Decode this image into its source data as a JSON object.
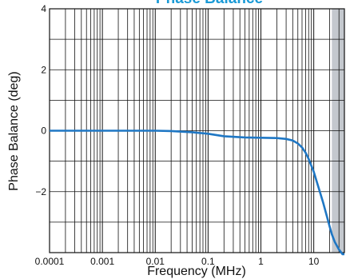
{
  "chart_data": {
    "type": "line",
    "title": "Phase Balance",
    "xlabel": "Frequency (MHz)",
    "ylabel": "Phase Balance (deg)",
    "x_scale": "log",
    "xlim": [
      0.0001,
      38
    ],
    "ylim": [
      -4,
      4
    ],
    "grid": true,
    "x_ticks": [
      {
        "value": 0.0001,
        "label": "0.0001"
      },
      {
        "value": 0.001,
        "label": "0.001"
      },
      {
        "value": 0.01,
        "label": "0.01"
      },
      {
        "value": 0.1,
        "label": "0.1"
      },
      {
        "value": 1,
        "label": "1"
      },
      {
        "value": 10,
        "label": "10"
      }
    ],
    "y_ticks": [
      {
        "value": 4,
        "label": "4"
      },
      {
        "value": 2,
        "label": "2"
      },
      {
        "value": 0,
        "label": "0"
      },
      {
        "value": -2,
        "label": "−2"
      }
    ],
    "shaded_region": {
      "x_from": 22,
      "x_to": 38
    },
    "series": [
      {
        "x": [
          0.0001,
          0.001,
          0.01,
          0.02,
          0.05,
          0.1,
          0.2,
          0.5,
          1,
          2,
          3,
          4,
          5,
          6,
          7,
          8,
          10,
          12,
          15,
          18,
          20,
          22,
          25,
          30,
          35,
          38
        ],
        "values": [
          0,
          0,
          0,
          -0.01,
          -0.05,
          -0.1,
          -0.18,
          -0.22,
          -0.23,
          -0.24,
          -0.27,
          -0.32,
          -0.42,
          -0.55,
          -0.72,
          -0.92,
          -1.35,
          -1.8,
          -2.35,
          -2.85,
          -3.15,
          -3.4,
          -3.65,
          -3.9,
          -4.05,
          -4.1
        ]
      }
    ],
    "colors": {
      "line": "#1f77c4",
      "title": "#1a9ad6",
      "shade": "#c4c8ce",
      "grid": "#111111"
    }
  }
}
